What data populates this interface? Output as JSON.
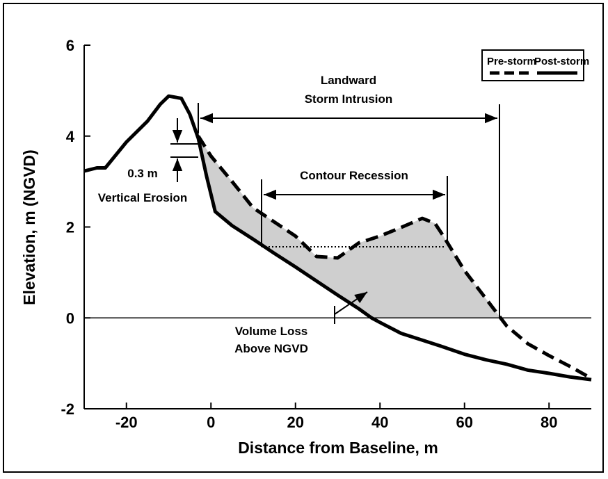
{
  "chart_data": {
    "type": "line",
    "xlabel": "Distance from Baseline, m",
    "ylabel": "Elevation, m (NGVD)",
    "xlim": [
      -30,
      90
    ],
    "xticks": [
      -20,
      0,
      20,
      40,
      60,
      80
    ],
    "ylim": [
      -2,
      6
    ],
    "yticks": [
      -2,
      0,
      2,
      4,
      6
    ],
    "hline": 0,
    "legend": "upper right",
    "series": [
      {
        "name": "Pre-storm",
        "color": "#000000",
        "style": "dashed",
        "x": [
          -3,
          0,
          5,
          10,
          15,
          20,
          25,
          30,
          35,
          40,
          45,
          50,
          53,
          55,
          60,
          65,
          70,
          75,
          80,
          85,
          90
        ],
        "values": [
          4.0,
          3.56,
          3.0,
          2.42,
          2.11,
          1.8,
          1.35,
          1.32,
          1.65,
          1.8,
          1.99,
          2.19,
          2.08,
          1.8,
          1.04,
          0.43,
          -0.18,
          -0.57,
          -0.83,
          -1.07,
          -1.33
        ]
      },
      {
        "name": "Post-storm",
        "color": "#000000",
        "style": "solid",
        "x": [
          -30,
          -27,
          -25,
          -20,
          -15,
          -12,
          -10,
          -7,
          -5,
          -3,
          -1,
          1,
          5,
          10,
          15,
          20,
          25,
          30,
          35,
          38,
          40,
          45,
          50,
          55,
          60,
          65,
          70,
          75,
          80,
          85,
          90
        ],
        "values": [
          3.23,
          3.3,
          3.3,
          3.87,
          4.33,
          4.7,
          4.88,
          4.83,
          4.48,
          3.95,
          3.1,
          2.34,
          2.03,
          1.73,
          1.42,
          1.12,
          0.81,
          0.5,
          0.2,
          0,
          -0.1,
          -0.34,
          -0.49,
          -0.64,
          -0.8,
          -0.92,
          -1.02,
          -1.15,
          -1.22,
          -1.3,
          -1.36
        ]
      }
    ],
    "annotations": [
      "Landward",
      "Storm Intrusion",
      "Contour Recession",
      "0.3 m",
      "Vertical Erosion",
      "Volume Loss",
      "Above NGVD"
    ]
  }
}
